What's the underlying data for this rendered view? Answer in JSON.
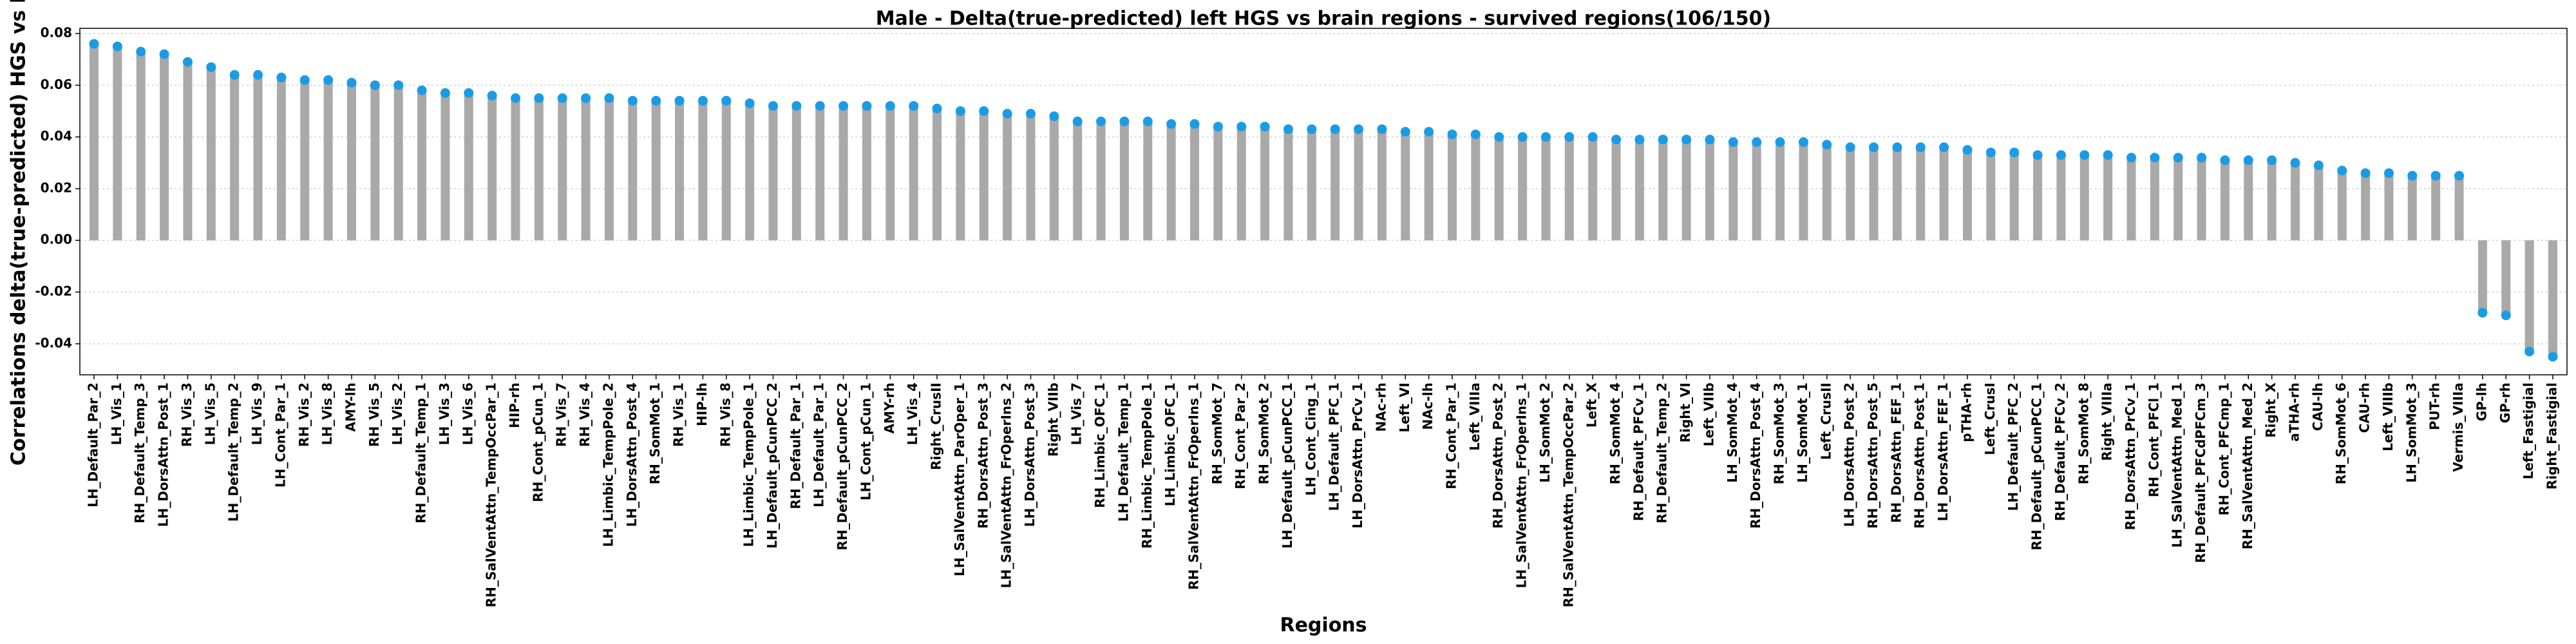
{
  "chart_data": {
    "type": "lollipop",
    "title": "Male - Delta(true-predicted) left HGS vs brain regions - survived regions(106/150)",
    "x_label": "Regions",
    "y_label": "Correlations delta(true-predicted) HGS vs brain",
    "categories": [
      "LH_Default_Par_2",
      "LH_Vis_1",
      "RH_Default_Temp_3",
      "LH_DorsAttn_Post_1",
      "RH_Vis_3",
      "LH_Vis_5",
      "LH_Default_Temp_2",
      "LH_Vis_9",
      "LH_Cont_Par_1",
      "RH_Vis_2",
      "LH_Vis_8",
      "AMY-lh",
      "RH_Vis_5",
      "LH_Vis_2",
      "RH_Default_Temp_1",
      "LH_Vis_3",
      "LH_Vis_6",
      "RH_SalVentAttn_TempOccPar_1",
      "HIP-rh",
      "RH_Cont_pCun_1",
      "RH_Vis_7",
      "RH_Vis_4",
      "LH_Limbic_TempPole_2",
      "LH_DorsAttn_Post_4",
      "RH_SomMot_1",
      "RH_Vis_1",
      "HIP-lh",
      "RH_Vis_8",
      "LH_Limbic_TempPole_1",
      "LH_Default_pCunPCC_2",
      "RH_Default_Par_1",
      "LH_Default_Par_1",
      "RH_Default_pCunPCC_2",
      "LH_Cont_pCun_1",
      "AMY-rh",
      "LH_Vis_4",
      "Right_CrusII",
      "LH_SalVentAttn_ParOper_1",
      "RH_DorsAttn_Post_3",
      "LH_SalVentAttn_FrOperIns_2",
      "LH_DorsAttn_Post_3",
      "Right_VIIb",
      "LH_Vis_7",
      "RH_Limbic_OFC_1",
      "LH_Default_Temp_1",
      "RH_Limbic_TempPole_1",
      "LH_Limbic_OFC_1",
      "RH_SalVentAttn_FrOperIns_1",
      "RH_SomMot_7",
      "RH_Cont_Par_2",
      "RH_SomMot_2",
      "LH_Default_pCunPCC_1",
      "LH_Cont_Cing_1",
      "LH_Default_PFC_1",
      "LH_DorsAttn_PrCv_1",
      "NAc-rh",
      "Left_VI",
      "NAc-lh",
      "RH_Cont_Par_1",
      "Left_VIIIa",
      "RH_DorsAttn_Post_2",
      "LH_SalVentAttn_FrOperIns_1",
      "LH_SomMot_2",
      "RH_SalVentAttn_TempOccPar_2",
      "Left_X",
      "RH_SomMot_4",
      "RH_Default_PFCv_1",
      "RH_Default_Temp_2",
      "Right_VI",
      "Left_VIIb",
      "LH_SomMot_4",
      "RH_DorsAttn_Post_4",
      "RH_SomMot_3",
      "LH_SomMot_1",
      "Left_CrusII",
      "LH_DorsAttn_Post_2",
      "RH_DorsAttn_Post_5",
      "RH_DorsAttn_FEF_1",
      "RH_DorsAttn_Post_1",
      "LH_DorsAttn_FEF_1",
      "pTHA-rh",
      "Left_CrusI",
      "LH_Default_PFC_2",
      "RH_Default_pCunPCC_1",
      "RH_Default_PFCv_2",
      "RH_SomMot_8",
      "Right_VIIIa",
      "RH_DorsAttn_PrCv_1",
      "RH_Cont_PFCl_1",
      "LH_SalVentAttn_Med_1",
      "RH_Default_PFCdPFCm_3",
      "RH_Cont_PFCmp_1",
      "RH_SalVentAttn_Med_2",
      "Right_X",
      "aTHA-rh",
      "CAU-lh",
      "RH_SomMot_6",
      "CAU-rh",
      "Left_VIIIb",
      "LH_SomMot_3",
      "PUT-rh",
      "Vermis_VIIIa",
      "GP-lh",
      "GP-rh",
      "Left_Fastigial",
      "Right_Fastigial"
    ],
    "values": [
      0.076,
      0.075,
      0.073,
      0.072,
      0.069,
      0.067,
      0.064,
      0.064,
      0.063,
      0.062,
      0.062,
      0.061,
      0.06,
      0.06,
      0.058,
      0.057,
      0.057,
      0.056,
      0.055,
      0.055,
      0.055,
      0.055,
      0.055,
      0.054,
      0.054,
      0.054,
      0.054,
      0.054,
      0.053,
      0.052,
      0.052,
      0.052,
      0.052,
      0.052,
      0.052,
      0.052,
      0.051,
      0.05,
      0.05,
      0.049,
      0.049,
      0.048,
      0.046,
      0.046,
      0.046,
      0.046,
      0.045,
      0.045,
      0.044,
      0.044,
      0.044,
      0.043,
      0.043,
      0.043,
      0.043,
      0.043,
      0.042,
      0.042,
      0.041,
      0.041,
      0.04,
      0.04,
      0.04,
      0.04,
      0.04,
      0.039,
      0.039,
      0.039,
      0.039,
      0.039,
      0.038,
      0.038,
      0.038,
      0.038,
      0.037,
      0.036,
      0.036,
      0.036,
      0.036,
      0.036,
      0.035,
      0.034,
      0.034,
      0.033,
      0.033,
      0.033,
      0.033,
      0.032,
      0.032,
      0.032,
      0.032,
      0.031,
      0.031,
      0.031,
      0.03,
      0.029,
      0.027,
      0.026,
      0.026,
      0.025,
      0.025,
      0.025,
      -0.028,
      -0.029,
      -0.043,
      -0.045
    ],
    "color": "#1a9be6",
    "stem_color": "#a9a9a9",
    "ylim": [
      -0.052,
      0.082
    ],
    "yticks": [
      -0.04,
      -0.02,
      {
        "value": 0,
        "label": "0.00"
      },
      0.02,
      0.04,
      0.06,
      0.08
    ],
    "grid": true
  }
}
